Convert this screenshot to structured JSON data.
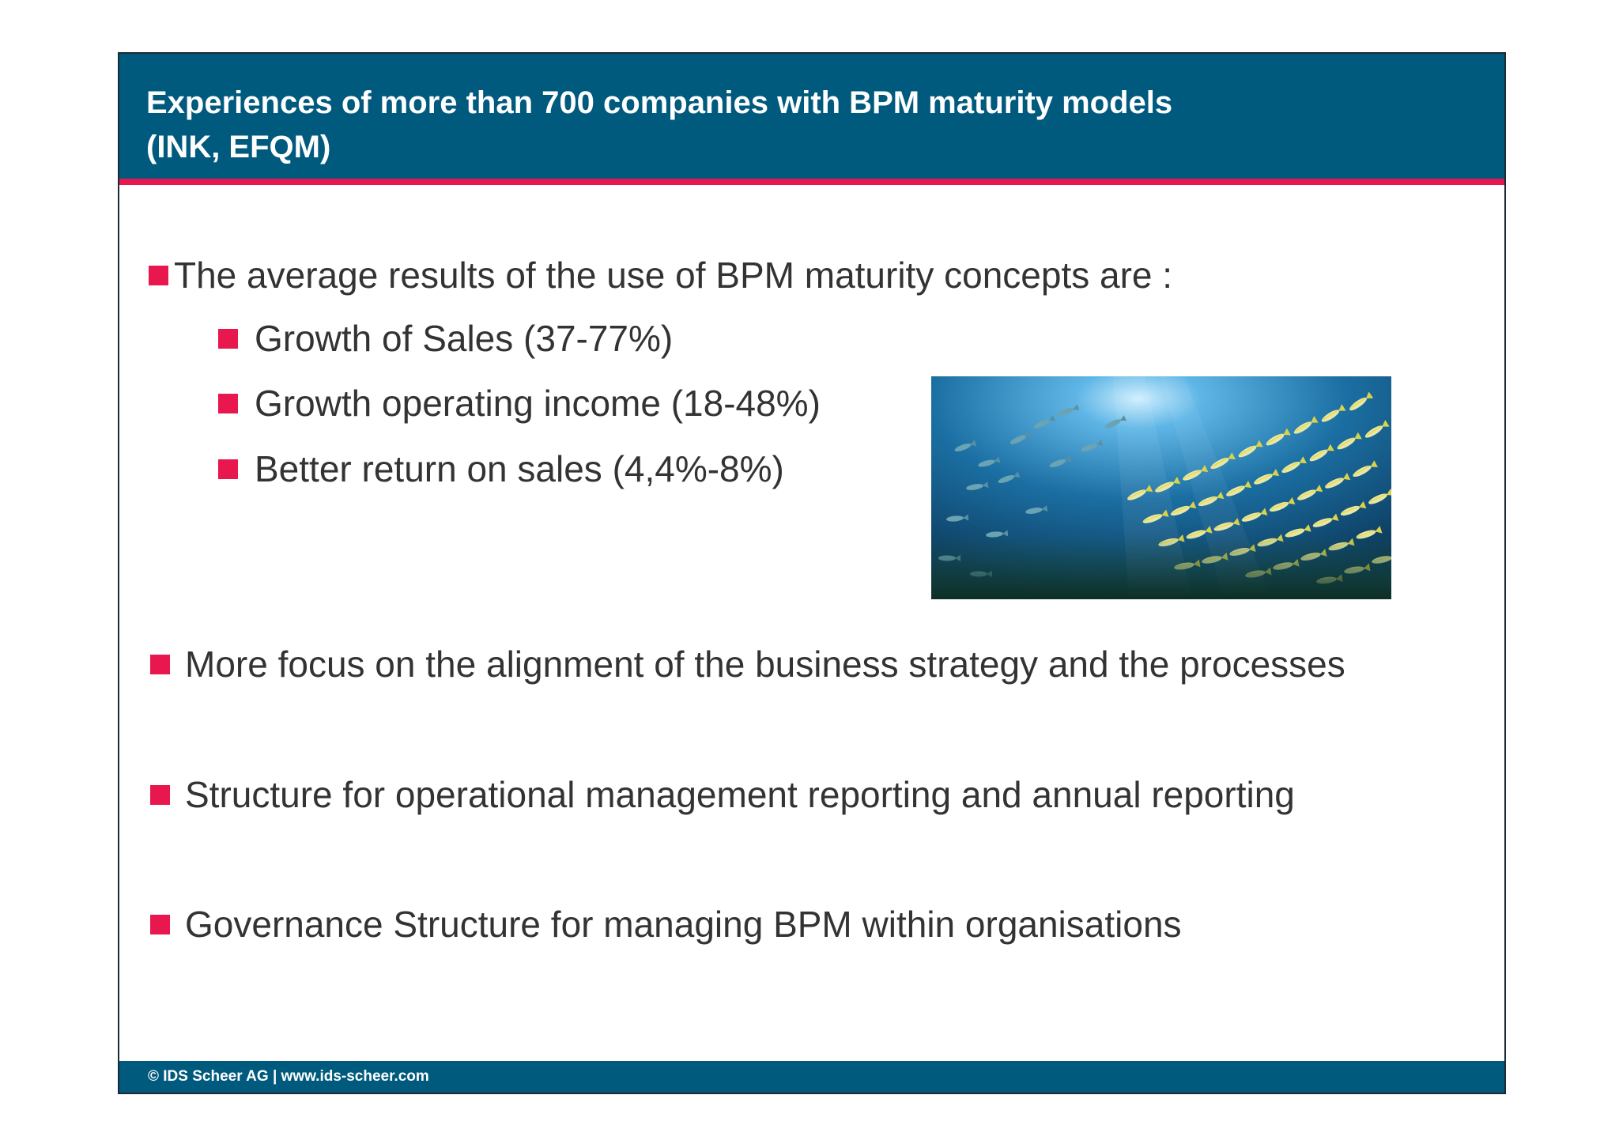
{
  "header": {
    "title_line1": "Experiences of more than 700 companies with BPM maturity models",
    "title_line2": "(INK, EFQM)"
  },
  "intro": {
    "text": "The average results of the use of BPM maturity concepts are :"
  },
  "sub_bullets": [
    {
      "text": "Growth of Sales (37-77%)"
    },
    {
      "text": "Growth operating income (18-48%)"
    },
    {
      "text": "Better return on sales (4,4%-8%)"
    }
  ],
  "main_bullets": [
    {
      "text": "More focus on the alignment of the business strategy and the processes"
    },
    {
      "text": "Structure for operational management reporting and annual reporting"
    },
    {
      "text": "Governance Structure for managing BPM within organisations"
    }
  ],
  "footer": {
    "text": "© IDS Scheer AG  |  www.ids-scheer.com"
  },
  "colors": {
    "header_blue": "#005a7e",
    "accent_red": "#e8174e",
    "body_text": "#333333"
  },
  "image": {
    "icon": "school-of-fish-photo"
  }
}
